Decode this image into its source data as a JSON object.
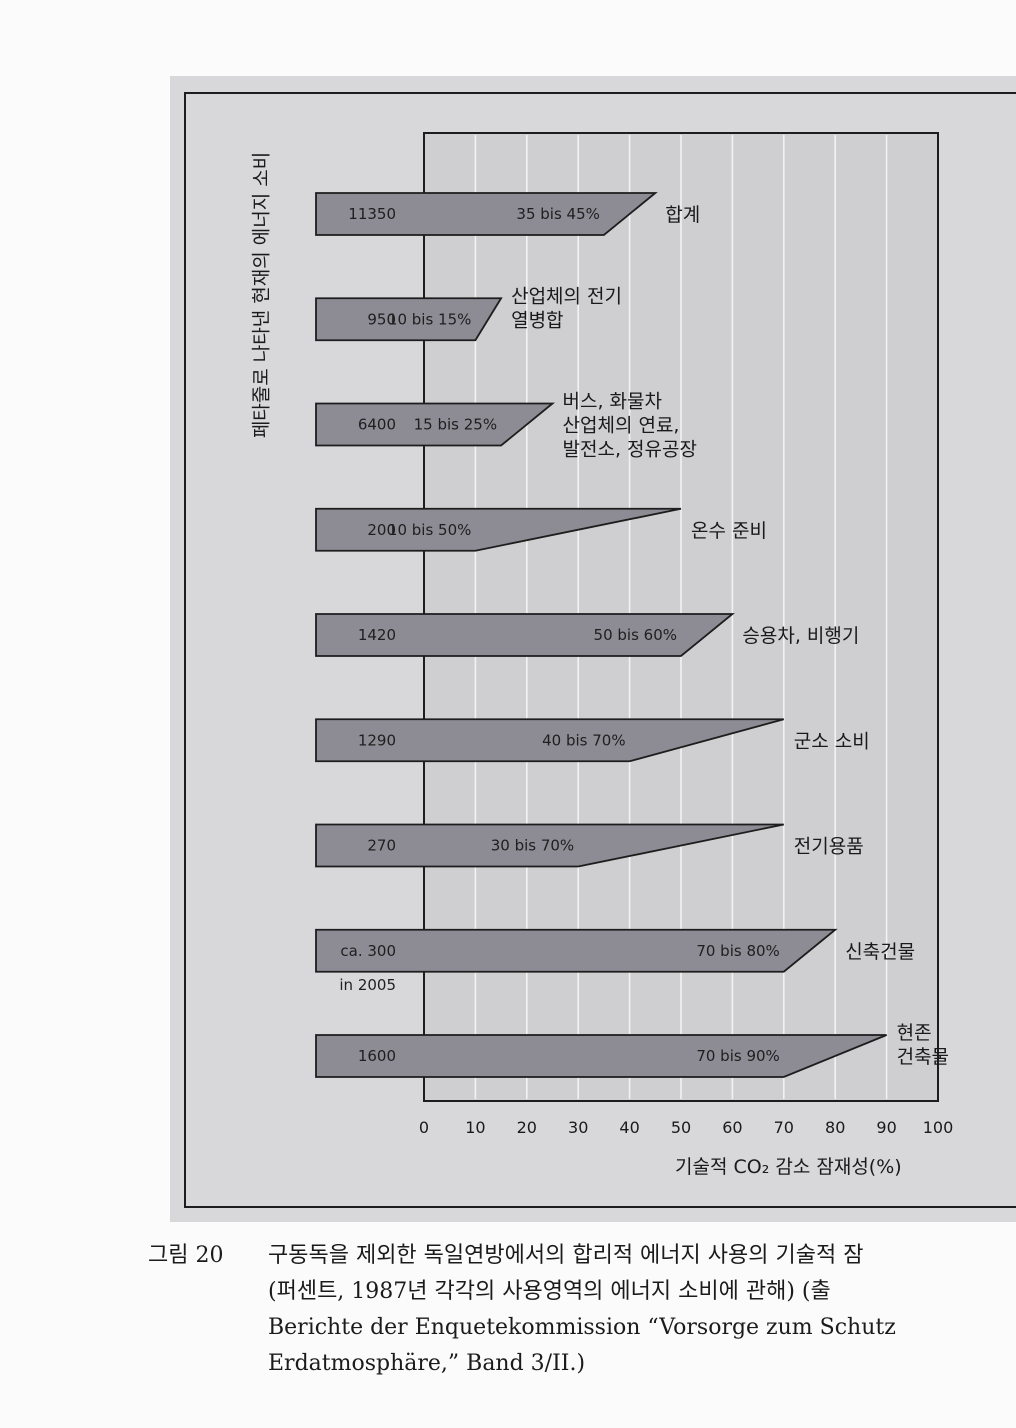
{
  "chart_data": {
    "type": "bar",
    "ylabel": "페타줄로 나타낸 현재의 에너지 소비",
    "xlabel": "기술적 CO₂ 감소 잠재성(%)",
    "xlim": [
      0,
      100
    ],
    "xticks": [
      "0",
      "10",
      "20",
      "30",
      "40",
      "50",
      "60",
      "70",
      "80",
      "90",
      "100"
    ],
    "grid": "vertical",
    "rows": [
      {
        "consumption": "11350",
        "sub": "",
        "range_label": "35 bis 45%",
        "low": 35,
        "high": 45,
        "category": [
          "합계"
        ]
      },
      {
        "consumption": "950",
        "sub": "",
        "range_label": "10 bis 15%",
        "low": 10,
        "high": 15,
        "category": [
          "산업체의 전기",
          "열병합"
        ]
      },
      {
        "consumption": "6400",
        "sub": "",
        "range_label": "15 bis 25%",
        "low": 15,
        "high": 25,
        "category": [
          "버스, 화물차",
          "산업체의 연료,",
          "발전소, 정유공장"
        ]
      },
      {
        "consumption": "200",
        "sub": "",
        "range_label": "10 bis 50%",
        "low": 10,
        "high": 50,
        "category": [
          "온수 준비"
        ]
      },
      {
        "consumption": "1420",
        "sub": "",
        "range_label": "50 bis 60%",
        "low": 50,
        "high": 60,
        "category": [
          "승용차, 비행기"
        ]
      },
      {
        "consumption": "1290",
        "sub": "",
        "range_label": "40 bis 70%",
        "low": 40,
        "high": 70,
        "category": [
          "군소 소비"
        ]
      },
      {
        "consumption": "270",
        "sub": "",
        "range_label": "30 bis 70%",
        "low": 30,
        "high": 70,
        "category": [
          "전기용품"
        ]
      },
      {
        "consumption": "ca. 300",
        "sub": "in 2005",
        "range_label": "70 bis 80%",
        "low": 70,
        "high": 80,
        "category": [
          "신축건물"
        ]
      },
      {
        "consumption": "1600",
        "sub": "",
        "range_label": "70 bis 90%",
        "low": 70,
        "high": 90,
        "category": [
          "현존",
          "건축물"
        ]
      }
    ]
  },
  "caption": {
    "number": "그림 20",
    "lines": [
      "구동독을 제외한 독일연방에서의 합리적 에너지 사용의 기술적 잠",
      "(퍼센트, 1987년 각각의 사용영역의 에너지 소비에 관해) (출",
      "Berichte der Enquetekommission “Vorsorge zum Schutz",
      "Erdatmosphäre,” Band 3/II.)"
    ]
  },
  "colors": {
    "bar": "#8d8b94",
    "plot_bg": "#cfcfd1",
    "panel_bg": "#d8d8da",
    "grid": "#f2f2f2",
    "ink": "#1d1d1d"
  }
}
